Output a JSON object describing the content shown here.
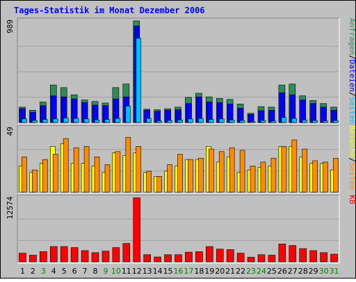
{
  "chart_data": {
    "title": "Tages-Statistik im Monat Dezember 2006",
    "days": [
      "1",
      "2",
      "3",
      "4",
      "5",
      "6",
      "7",
      "8",
      "9",
      "10",
      "11",
      "12",
      "13",
      "14",
      "15",
      "16",
      "17",
      "18",
      "19",
      "20",
      "21",
      "22",
      "23",
      "24",
      "25",
      "26",
      "27",
      "28",
      "29",
      "30",
      "31"
    ],
    "weekend_days": [
      "3",
      "9",
      "10",
      "16",
      "17",
      "23",
      "24",
      "30",
      "31"
    ],
    "colors": {
      "background": "#c0c0c0",
      "frame_light": "#ffffff",
      "frame_dark": "#808080",
      "title": "#0000ff",
      "day_normal": "#000000",
      "day_weekend": "#008000",
      "anfragen": "#2e8b57",
      "dateien": "#0000ff",
      "seiten_top": "#00bfff",
      "besuche": "#ffff00",
      "seiten_mid": "#ff8c00",
      "kb": "#ff0000"
    },
    "panels": [
      {
        "id": "top",
        "ymax_label": "989",
        "ymax": 989,
        "legend": [
          {
            "text": "Anfragen",
            "color": "#2e8b57"
          },
          {
            "text": "Dateien",
            "color": "#0000ff"
          },
          {
            "text": "Seiten",
            "color": "#00bfff"
          }
        ],
        "series": [
          {
            "name": "Anfragen",
            "color": "#2e8b57",
            "values": [
              150,
              120,
              200,
              365,
              340,
              270,
              220,
              205,
              190,
              340,
              375,
              989,
              130,
              125,
              135,
              150,
              245,
              285,
              250,
              235,
              225,
              180,
              90,
              155,
              150,
              365,
              375,
              260,
              215,
              185,
              150
            ]
          },
          {
            "name": "Dateien",
            "color": "#0000ff",
            "values": [
              135,
              100,
              165,
              260,
              250,
              230,
              195,
              170,
              165,
              230,
              250,
              940,
              120,
              110,
              120,
              125,
              185,
              250,
              200,
              195,
              180,
              140,
              80,
              115,
              120,
              290,
              270,
              220,
              185,
              150,
              120
            ]
          },
          {
            "name": "Seiten",
            "color": "#00bfff",
            "values": [
              35,
              20,
              30,
              35,
              45,
              40,
              35,
              25,
              30,
              40,
              160,
              820,
              40,
              15,
              20,
              25,
              35,
              40,
              30,
              35,
              25,
              20,
              10,
              20,
              15,
              50,
              40,
              25,
              20,
              15,
              20
            ]
          }
        ]
      },
      {
        "id": "middle",
        "ymax_label": "49",
        "ymax": 49,
        "legend": [
          {
            "text": "Besuche",
            "color": "#ffff00"
          },
          {
            "text": "Seiten",
            "color": "#ff8c00"
          }
        ],
        "series": [
          {
            "name": "Besuche",
            "color": "#ffff00",
            "values": [
              20,
              15,
              22,
              35,
              37,
              22,
              22,
              20,
              15,
              30,
              28,
              30,
              15,
              12,
              16,
              20,
              25,
              25,
              35,
              23,
              27,
              15,
              17,
              19,
              20,
              35,
              35,
              27,
              22,
              22,
              17
            ]
          },
          {
            "name": "Seiten",
            "color": "#ff8c00",
            "values": [
              27,
              17,
              25,
              29,
              41,
              34,
              35,
              27,
              21,
              31,
              42,
              35,
              16,
              12,
              21,
              29,
              25,
              26,
              33,
              31,
              34,
              32,
              20,
              23,
              26,
              35,
              40,
              33,
              24,
              23,
              26
            ]
          }
        ]
      },
      {
        "id": "bottom",
        "ymax_label": "12574",
        "ymax": 12574,
        "legend": [
          {
            "text": "KB",
            "color": "#ff0000"
          }
        ],
        "series": [
          {
            "name": "KB",
            "color": "#ff0000",
            "values": [
              1700,
              1300,
              2000,
              3000,
              3000,
              2800,
              2200,
              1800,
              2100,
              2800,
              3600,
              12574,
              1400,
              950,
              1400,
              1400,
              1900,
              2000,
              3000,
              2500,
              2400,
              1700,
              900,
              1400,
              1300,
              3500,
              3200,
              2600,
              2200,
              1800,
              1500
            ]
          }
        ]
      }
    ]
  }
}
